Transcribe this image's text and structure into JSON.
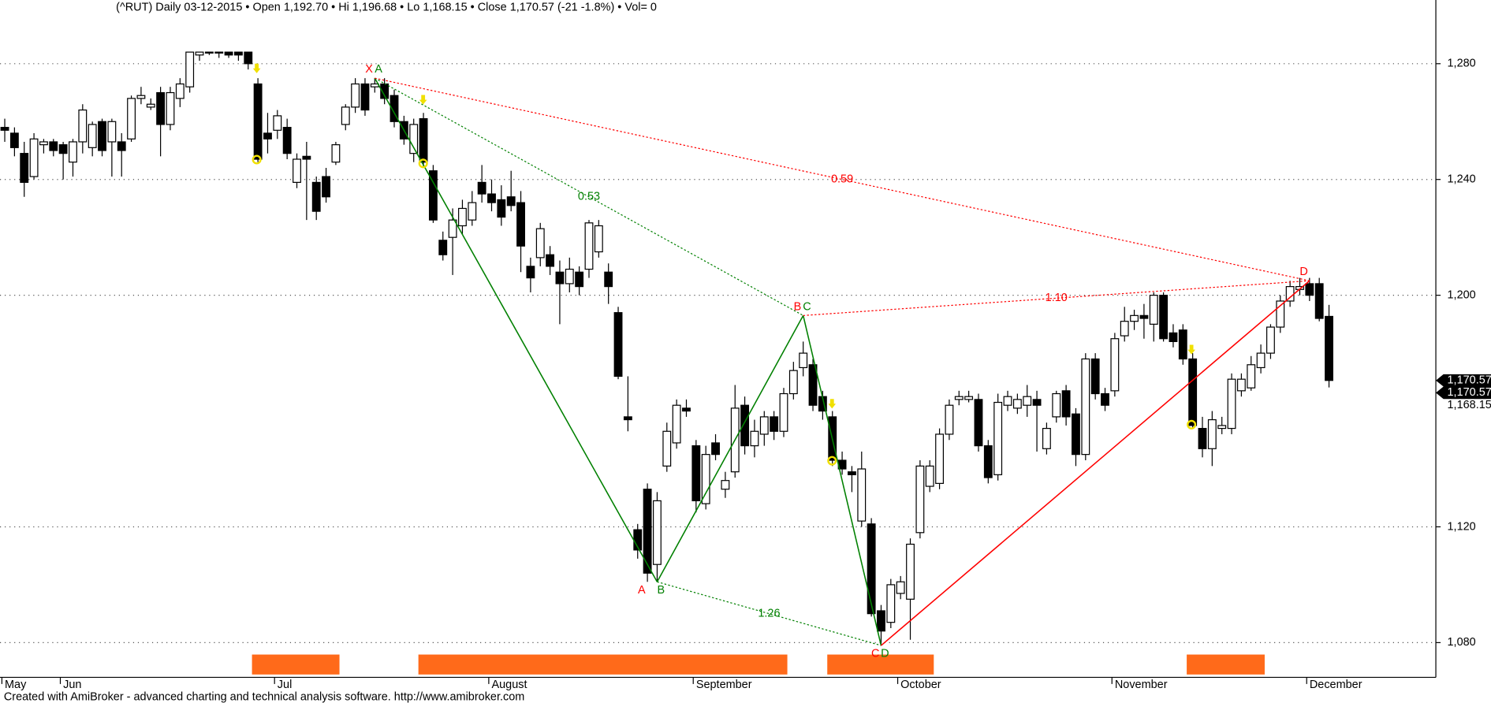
{
  "chart_data": {
    "type": "candlestick",
    "title": "(^RUT) Daily  03-12-2015  •  Open 1,192.70  •  Hi 1,196.68  •  Lo 1,168.15  •  Close 1,170.57 (-21 -1.8%)  •  Vol= 0",
    "credit": "Created with AmiBroker - advanced charting and technical analysis software. http://www.amibroker.com",
    "ylim": [
      1068,
      1302
    ],
    "yticks": [
      {
        "value": 1080,
        "label": "1,080"
      },
      {
        "value": 1120,
        "label": "1,120"
      },
      {
        "value": 1200,
        "label": "1,200"
      },
      {
        "value": 1240,
        "label": "1,240"
      },
      {
        "value": 1280,
        "label": "1,280"
      }
    ],
    "grid": true,
    "up_color": "#ffffff",
    "down_color": "#000000",
    "xticks": [
      {
        "value": 0,
        "label": "May"
      },
      {
        "value": 6,
        "label": "Jun"
      },
      {
        "value": 28,
        "label": "Jul"
      },
      {
        "value": 50,
        "label": "August"
      },
      {
        "value": 71,
        "label": "September"
      },
      {
        "value": 92,
        "label": "October"
      },
      {
        "value": 114,
        "label": "November"
      },
      {
        "value": 134,
        "label": "December"
      }
    ],
    "open": [
      1258,
      1256,
      1249,
      1241,
      1252,
      1253,
      1252,
      1246,
      1253,
      1251,
      1260,
      1253,
      1253,
      1254,
      1268,
      1265,
      1270,
      1259,
      1268,
      1272,
      1283,
      1284,
      1284,
      1284,
      1284,
      1284,
      1273,
      1256,
      1257,
      1258,
      1239,
      1248,
      1239,
      1241,
      1246,
      1259,
      1265,
      1273,
      1272,
      1273,
      1269,
      1260,
      1249,
      1261,
      1243,
      1219,
      1220,
      1224,
      1226,
      1239,
      1235,
      1233,
      1234,
      1232,
      1210,
      1213,
      1214,
      1208,
      1204,
      1208,
      1209,
      1215,
      1208,
      1194,
      1158,
      1119,
      1133,
      1107,
      1141,
      1149,
      1161,
      1148,
      1128,
      1149,
      1133,
      1139,
      1162,
      1148,
      1152,
      1158,
      1153,
      1166,
      1175,
      1176,
      1165,
      1158,
      1143,
      1139,
      1122,
      1121,
      1091,
      1087,
      1097,
      1095,
      1118,
      1134,
      1135,
      1152,
      1164,
      1164,
      1164,
      1148,
      1138,
      1162,
      1161,
      1162,
      1164,
      1147,
      1158,
      1167,
      1159,
      1145,
      1178,
      1166,
      1167,
      1186,
      1191,
      1193,
      1190,
      1200,
      1187,
      1188,
      1178,
      1154,
      1147,
      1154,
      1154,
      1167,
      1168,
      1175,
      1180,
      1189,
      1198,
      1202,
      1204,
      1204,
      1192.7
    ],
    "high": [
      1261,
      1258,
      1253,
      1256,
      1254,
      1254,
      1253,
      1254,
      1266,
      1260,
      1261,
      1261,
      1256,
      1269,
      1272,
      1268,
      1272,
      1272,
      1275,
      1284,
      1284,
      1284,
      1284,
      1284,
      1284,
      1284,
      1275,
      1263,
      1264,
      1261,
      1249,
      1253,
      1241,
      1244,
      1253,
      1266,
      1275,
      1275,
      1275,
      1275,
      1271,
      1262,
      1261,
      1263,
      1245,
      1222,
      1230,
      1233,
      1236,
      1245,
      1240,
      1238,
      1243,
      1236,
      1213,
      1225,
      1217,
      1212,
      1213,
      1210,
      1226,
      1226,
      1211,
      1196,
      1172,
      1121,
      1135,
      1132,
      1156,
      1164,
      1164,
      1150,
      1148,
      1152,
      1139,
      1169,
      1165,
      1157,
      1160,
      1160,
      1168,
      1177,
      1184,
      1178,
      1167,
      1160,
      1146,
      1141,
      1146,
      1123,
      1093,
      1102,
      1103,
      1116,
      1143,
      1143,
      1154,
      1164,
      1167,
      1167,
      1166,
      1150,
      1166,
      1167,
      1166,
      1169,
      1167,
      1156,
      1167,
      1169,
      1161,
      1180,
      1180,
      1168,
      1187,
      1196,
      1195,
      1197,
      1201,
      1201,
      1190,
      1190,
      1180,
      1158,
      1160,
      1158,
      1173,
      1173,
      1179,
      1183,
      1190,
      1200,
      1205,
      1206,
      1206,
      1206,
      1196.68
    ],
    "low": [
      1253,
      1248,
      1234,
      1240,
      1249,
      1248,
      1240,
      1241,
      1249,
      1248,
      1248,
      1241,
      1241,
      1253,
      1266,
      1264,
      1248,
      1257,
      1265,
      1270,
      1281,
      1283,
      1282,
      1282,
      1281,
      1278,
      1246,
      1249,
      1254,
      1247,
      1237,
      1226,
      1226,
      1232,
      1245,
      1257,
      1263,
      1262,
      1270,
      1266,
      1258,
      1252,
      1246,
      1244,
      1225,
      1212,
      1207,
      1221,
      1224,
      1232,
      1229,
      1224,
      1229,
      1208,
      1201,
      1210,
      1207,
      1190,
      1201,
      1200,
      1206,
      1213,
      1197,
      1171,
      1153,
      1109,
      1101,
      1101,
      1139,
      1147,
      1158,
      1125,
      1126,
      1143,
      1130,
      1137,
      1145,
      1144,
      1148,
      1150,
      1151,
      1164,
      1172,
      1160,
      1157,
      1141,
      1138,
      1132,
      1120,
      1089,
      1079,
      1085,
      1095,
      1081,
      1116,
      1132,
      1133,
      1150,
      1162,
      1163,
      1146,
      1135,
      1136,
      1160,
      1159,
      1158,
      1146,
      1145,
      1156,
      1155,
      1141,
      1143,
      1164,
      1160,
      1165,
      1184,
      1188,
      1185,
      1184,
      1184,
      1182,
      1176,
      1154,
      1144,
      1141,
      1152,
      1152,
      1165,
      1167,
      1173,
      1178,
      1187,
      1196,
      1200,
      1198,
      1191,
      1168.15
    ],
    "close": [
      1257,
      1251,
      1239,
      1254,
      1253,
      1250,
      1249,
      1253,
      1264,
      1259,
      1250,
      1260,
      1250,
      1268,
      1269,
      1266,
      1259,
      1270,
      1273,
      1284,
      1284,
      1284,
      1284,
      1283,
      1283,
      1280,
      1247,
      1254,
      1262,
      1249,
      1247,
      1247,
      1229,
      1234,
      1252,
      1265,
      1273,
      1264,
      1273,
      1268,
      1260,
      1254,
      1259,
      1246,
      1226,
      1214,
      1226,
      1230,
      1232,
      1235,
      1232,
      1227,
      1231,
      1217,
      1206,
      1223,
      1210,
      1204,
      1209,
      1203,
      1225,
      1224,
      1203,
      1172,
      1157,
      1112,
      1104,
      1129,
      1153,
      1162,
      1160,
      1129,
      1145,
      1145,
      1136,
      1161,
      1148,
      1153,
      1158,
      1153,
      1166,
      1174,
      1180,
      1162,
      1160,
      1143,
      1140,
      1138,
      1140,
      1090,
      1084,
      1100,
      1101,
      1114,
      1141,
      1141,
      1152,
      1162,
      1165,
      1165,
      1148,
      1137,
      1163,
      1165,
      1164,
      1165,
      1162,
      1154,
      1166,
      1158,
      1145,
      1178,
      1166,
      1162,
      1185,
      1191,
      1193,
      1192,
      1200,
      1185,
      1184,
      1178,
      1155,
      1147,
      1157,
      1155,
      1171,
      1171,
      1176,
      1180,
      1189,
      1198,
      1203,
      1203,
      1200,
      1192,
      1170.57
    ],
    "patterns": [
      {
        "color": "#008000",
        "points": [
          {
            "label": "A",
            "index": 38,
            "value": 1275
          },
          {
            "label": "B",
            "index": 67,
            "value": 1101
          },
          {
            "label": "C",
            "index": 82,
            "value": 1193
          },
          {
            "label": "D",
            "index": 90,
            "value": 1079
          }
        ],
        "ratios": [
          0.53,
          1.26
        ]
      },
      {
        "color": "#ff0000",
        "points": [
          {
            "label": "X",
            "index": 38,
            "value": 1275
          },
          {
            "label": "A",
            "index": 66,
            "value": 1101
          },
          {
            "label": "B",
            "index": 82,
            "value": 1193
          },
          {
            "label": "C",
            "index": 90,
            "value": 1079
          },
          {
            "label": "D",
            "index": 134,
            "value": 1205
          }
        ],
        "ratios": [
          0.59,
          "1.10"
        ]
      }
    ],
    "price_labels": [
      {
        "value": 1170.57,
        "label": "1,170.57",
        "boxed": true
      },
      {
        "value": 1170.57,
        "label": "1,170.57",
        "boxed": true
      },
      {
        "value": 1168.15,
        "label": "1,168.15",
        "boxed": false
      }
    ]
  }
}
